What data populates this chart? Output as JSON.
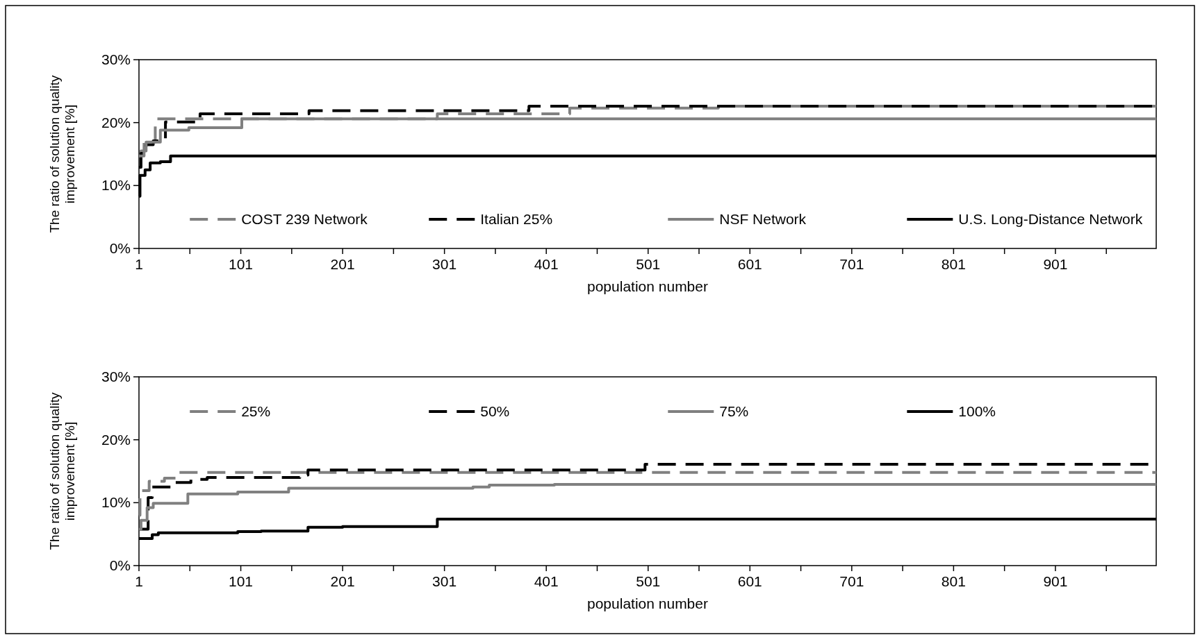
{
  "chart_data": [
    {
      "type": "step",
      "xlabel": "population number",
      "ylabel": "The ratio of solution quality\nimprovement [%]",
      "xlim": [
        1,
        1000
      ],
      "ylim": [
        0,
        30
      ],
      "xticks": [
        1,
        {
          "value": 51,
          "label": null
        },
        101,
        {
          "value": 151,
          "label": null
        },
        201,
        {
          "value": 251,
          "label": null
        },
        301,
        {
          "value": 351,
          "label": null
        },
        401,
        {
          "value": 451,
          "label": null
        },
        501,
        {
          "value": 551,
          "label": null
        },
        601,
        {
          "value": 651,
          "label": null
        },
        701,
        {
          "value": 751,
          "label": null
        },
        801,
        {
          "value": 851,
          "label": null
        },
        901,
        {
          "value": 951,
          "label": null
        }
      ],
      "yticks": [
        {
          "value": 0,
          "label": "0%"
        },
        {
          "value": 10,
          "label": "10%"
        },
        {
          "value": 20,
          "label": "20%"
        },
        {
          "value": 30,
          "label": "30%"
        }
      ],
      "legend": "bottom",
      "grid": false,
      "series": [
        {
          "name": "COST 239 Network",
          "color": "#808080",
          "line_style": "dashed",
          "x": [
            1,
            3,
            6,
            8,
            17,
            294,
            424,
            570,
            1000
          ],
          "values": [
            14.7,
            15.5,
            16.9,
            16.9,
            20.6,
            21.4,
            22.3,
            22.6,
            22.6
          ]
        },
        {
          "name": "Italian 25%",
          "color": "#000000",
          "line_style": "dashed",
          "x": [
            1,
            3,
            8,
            15,
            27,
            61,
            168,
            384,
            1000
          ],
          "values": [
            12.9,
            15.1,
            16.5,
            17.1,
            20.1,
            21.4,
            21.9,
            22.6,
            22.6
          ]
        },
        {
          "name": "NSF Network",
          "color": "#808080",
          "line_style": "solid",
          "x": [
            1,
            6,
            8,
            22,
            50,
            102,
            1000
          ],
          "values": [
            14.7,
            15.5,
            16.9,
            18.8,
            19.2,
            20.6,
            20.6
          ]
        },
        {
          "name": "U.S. Long-Distance Network",
          "color": "#000000",
          "line_style": "solid",
          "x": [
            1,
            2,
            7,
            12,
            22,
            32,
            1000
          ],
          "values": [
            8.3,
            11.6,
            12.5,
            13.6,
            13.8,
            14.7,
            14.7
          ]
        }
      ]
    },
    {
      "type": "step",
      "xlabel": "population number",
      "ylabel": "The ratio of solution quality\nimprovement [%]",
      "xlim": [
        1,
        1000
      ],
      "ylim": [
        0,
        30
      ],
      "xticks": [
        1,
        {
          "value": 51,
          "label": null
        },
        101,
        {
          "value": 151,
          "label": null
        },
        201,
        {
          "value": 251,
          "label": null
        },
        301,
        {
          "value": 351,
          "label": null
        },
        401,
        {
          "value": 451,
          "label": null
        },
        501,
        {
          "value": 551,
          "label": null
        },
        601,
        {
          "value": 651,
          "label": null
        },
        701,
        {
          "value": 751,
          "label": null
        },
        801,
        {
          "value": 851,
          "label": null
        },
        901,
        {
          "value": 951,
          "label": null
        }
      ],
      "yticks": [
        {
          "value": 0,
          "label": "0%"
        },
        {
          "value": 10,
          "label": "10%"
        },
        {
          "value": 20,
          "label": "20%"
        },
        {
          "value": 30,
          "label": "30%"
        }
      ],
      "legend": "top",
      "grid": false,
      "series": [
        {
          "name": "25%",
          "color": "#808080",
          "line_style": "dashed",
          "x": [
            1,
            2,
            11,
            26,
            37,
            1000
          ],
          "values": [
            8,
            11.9,
            13.4,
            13.9,
            14.8,
            14.8
          ]
        },
        {
          "name": "50%",
          "color": "#000000",
          "line_style": "dashed",
          "x": [
            1,
            10,
            14,
            37,
            52,
            68,
            159,
            167,
            498,
            1000
          ],
          "values": [
            5.8,
            10.8,
            12.5,
            13.2,
            13.7,
            14,
            14.4,
            15.2,
            16.1,
            16.1
          ]
        },
        {
          "name": "75%",
          "color": "#808080",
          "line_style": "solid",
          "x": [
            1,
            3,
            9,
            15,
            49,
            98,
            148,
            329,
            345,
            409,
            1000
          ],
          "values": [
            5.8,
            7.2,
            9.2,
            9.9,
            11.4,
            11.7,
            12.3,
            12.5,
            12.8,
            12.9,
            12.9
          ]
        },
        {
          "name": "100%",
          "color": "#000000",
          "line_style": "solid",
          "x": [
            1,
            14,
            20,
            98,
            121,
            167,
            201,
            294,
            1000
          ],
          "values": [
            4.3,
            4.9,
            5.2,
            5.4,
            5.5,
            6.1,
            6.2,
            7.4,
            7.4
          ]
        }
      ]
    }
  ]
}
